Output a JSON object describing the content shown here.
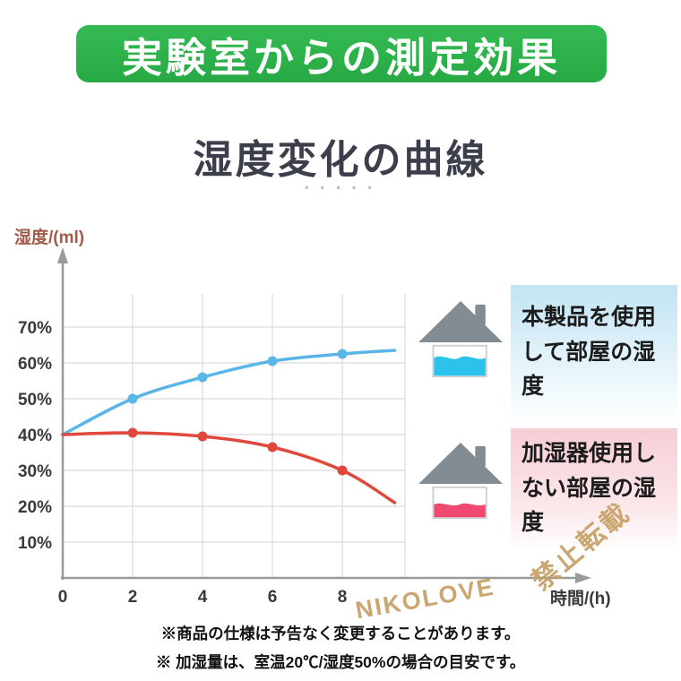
{
  "banner": {
    "title": "実験室からの測定効果",
    "bg_color": "#2fb24b"
  },
  "heading": {
    "title": "湿度変化の曲線",
    "dots": "▪ ▪ ▪ ▪ ▪"
  },
  "chart_data": {
    "type": "line",
    "title": "湿度変化の曲線",
    "xlabel": "時間/(h)",
    "ylabel": "湿度/(ml)",
    "xtick_values": [
      0,
      2,
      4,
      6,
      8
    ],
    "xtick_labels": [
      "0",
      "2",
      "4",
      "6",
      "8"
    ],
    "ytick_values": [
      10,
      20,
      30,
      40,
      50,
      60,
      70
    ],
    "ytick_labels": [
      "10%",
      "20%",
      "30%",
      "40%",
      "50%",
      "60%",
      "70%"
    ],
    "xlim": [
      0,
      10.8
    ],
    "ylim": [
      0,
      78
    ],
    "grid": true,
    "series": [
      {
        "name": "本製品を使用して部屋の湿度",
        "color": "#5ab5e8",
        "marker_x": [
          2,
          4,
          6,
          8
        ],
        "points": [
          [
            0,
            40
          ],
          [
            2,
            50
          ],
          [
            4,
            56
          ],
          [
            6,
            60.5
          ],
          [
            8,
            62.5
          ],
          [
            9.5,
            63.5
          ]
        ]
      },
      {
        "name": "加湿器使用しない部屋の湿度",
        "color": "#e0483e",
        "marker_x": [
          2,
          4,
          6,
          8
        ],
        "points": [
          [
            0,
            40
          ],
          [
            2,
            40.5
          ],
          [
            4,
            39.5
          ],
          [
            6,
            36.5
          ],
          [
            8,
            30
          ],
          [
            9.5,
            21
          ]
        ]
      }
    ]
  },
  "legend": [
    {
      "label": "本製品を使用\nして部屋の湿度",
      "house_fill": "#2bc3ec"
    },
    {
      "label": "加湿器使用し\nない部屋の湿度",
      "house_fill": "#f04a70"
    }
  ],
  "watermark": {
    "text1": "NIKOLOVE",
    "text2": "禁止転載"
  },
  "notes": {
    "line1": "※商品の仕様は予告なく変更することがあります。",
    "line2": "※ 加湿量は、室温20℃/湿度50%の場合の目安です。"
  }
}
